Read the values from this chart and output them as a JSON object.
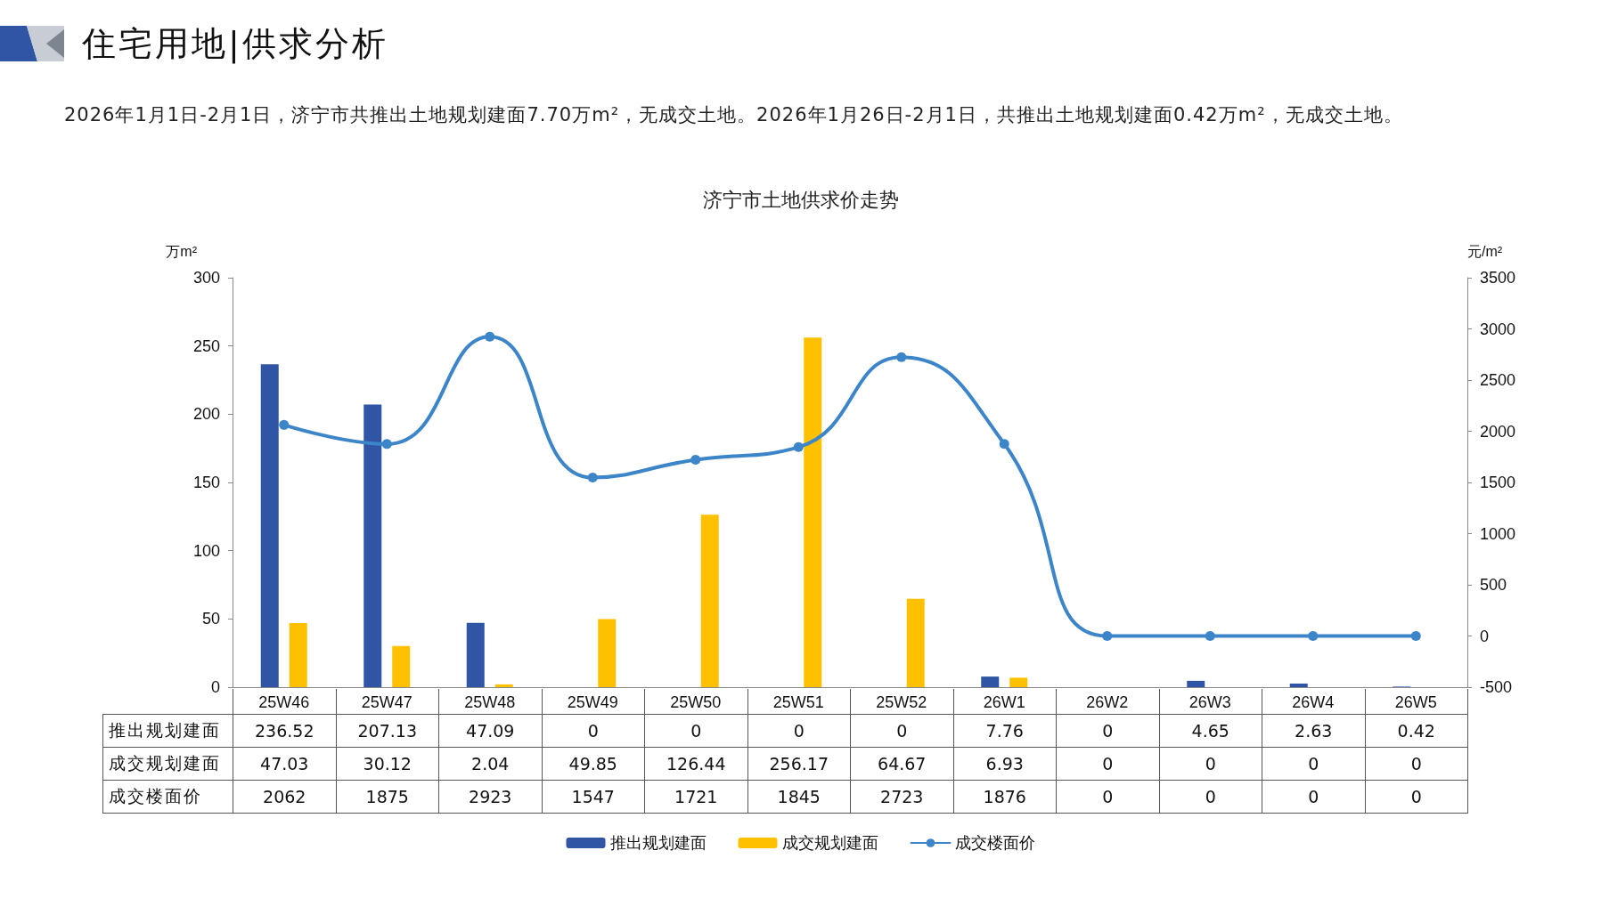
{
  "chart_data": {
    "type": "bar",
    "title": "济宁市土地供求价走势",
    "subtitle": "2026年1月1日-2月1日，济宁市共推出土地规划建面7.70万m²，无成交土地。2026年1月26日-2月1日，共推出土地规划建面0.42万m²，无成交土地。",
    "annotations": [
      "住宅用地|供求分析"
    ],
    "ylabel": "万m²",
    "y2label": "元/m²",
    "categories": [
      "25W46",
      "25W47",
      "25W48",
      "25W49",
      "25W50",
      "25W51",
      "25W52",
      "26W1",
      "26W2",
      "26W3",
      "26W4",
      "26W5"
    ],
    "series": [
      {
        "name": "推出规划建面",
        "color": "#2f55a4",
        "values": [
          236.52,
          207.13,
          47.09,
          0,
          0,
          0,
          0,
          7.76,
          0,
          4.65,
          2.63,
          0.42
        ]
      },
      {
        "name": "成交规划建面",
        "color": "#ffc000",
        "values": [
          47.03,
          30.12,
          2.04,
          49.85,
          126.44,
          256.17,
          64.67,
          6.93,
          0,
          0,
          0,
          0
        ]
      },
      {
        "name": "成交楼面价",
        "type": "line",
        "axis": "y2",
        "color": "#3d85c9",
        "values": [
          2062,
          1875,
          2923,
          1547,
          1721,
          1845,
          2723,
          1876,
          0,
          0,
          0,
          0
        ]
      }
    ],
    "ylim": [
      0,
      300
    ],
    "yticks": [
      0,
      50,
      100,
      150,
      200,
      250,
      300
    ],
    "y2lim": [
      -500,
      3500
    ],
    "y2ticks": [
      -500,
      0,
      500,
      1000,
      1500,
      2000,
      2500,
      3000,
      3500
    ],
    "data_labels": true,
    "legend": "bottom",
    "marker": "circle",
    "line_style": "solid",
    "grid": false
  }
}
